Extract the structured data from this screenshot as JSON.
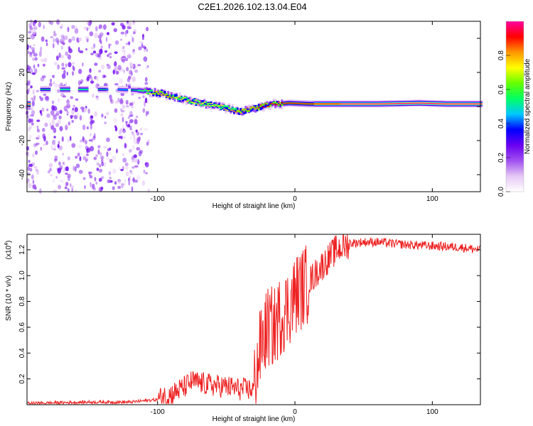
{
  "title": "C2E1.2026.102.13.04.E04",
  "chart_data": [
    {
      "type": "heatmap",
      "title": "C2E1.2026.102.13.04.E04",
      "xlabel": "Height of straight line (km)",
      "ylabel": "Frequency (Hz)",
      "xlim": [
        -195,
        135
      ],
      "ylim": [
        -50,
        50
      ],
      "xticks": [
        -100,
        0,
        100
      ],
      "yticks": [
        -40,
        -20,
        0,
        20,
        40
      ],
      "colorbar": {
        "label": "Normalized spectral amplitude",
        "range": [
          0,
          1
        ],
        "ticks": [
          0.0,
          0.2,
          0.4,
          0.6,
          0.8
        ],
        "colors": [
          "#ffffff",
          "#e6c8f5",
          "#a050f0",
          "#6a00f0",
          "#0000ff",
          "#00c8ff",
          "#00ff64",
          "#64ff00",
          "#ffff00",
          "#ff9600",
          "#ff0000",
          "#ff00a0"
        ]
      },
      "ridge": [
        {
          "x": -190,
          "freq": 10,
          "amp": 0.5
        },
        {
          "x": -175,
          "freq": 10,
          "amp": 0.55
        },
        {
          "x": -160,
          "freq": 10,
          "amp": 0.6
        },
        {
          "x": -145,
          "freq": 10,
          "amp": 0.55
        },
        {
          "x": -130,
          "freq": 10,
          "amp": 0.45
        },
        {
          "x": -115,
          "freq": 9.5,
          "amp": 0.55
        },
        {
          "x": -100,
          "freq": 8,
          "amp": 0.85
        },
        {
          "x": -85,
          "freq": 5,
          "amp": 0.75
        },
        {
          "x": -70,
          "freq": 2,
          "amp": 0.7
        },
        {
          "x": -55,
          "freq": 0,
          "amp": 0.75
        },
        {
          "x": -40,
          "freq": -3,
          "amp": 0.8
        },
        {
          "x": -30,
          "freq": -1,
          "amp": 0.85
        },
        {
          "x": -20,
          "freq": 1,
          "amp": 0.9
        },
        {
          "x": -5,
          "freq": 2,
          "amp": 0.9
        },
        {
          "x": 10,
          "freq": 1.5,
          "amp": 0.9
        },
        {
          "x": 30,
          "freq": 1.5,
          "amp": 0.95
        },
        {
          "x": 60,
          "freq": 1.5,
          "amp": 1.0
        },
        {
          "x": 90,
          "freq": 2,
          "amp": 1.0
        },
        {
          "x": 110,
          "freq": 1.5,
          "amp": 1.0
        },
        {
          "x": 135,
          "freq": 1.5,
          "amp": 1.0
        }
      ]
    },
    {
      "type": "line",
      "xlabel": "Height of straight line (km)",
      "ylabel": "SNR (10 * v/v)",
      "yscale_label": "(x10",
      "yscale_exp": "4",
      "yscale_close": ")",
      "xlim": [
        -195,
        135
      ],
      "ylim": [
        0,
        1.32
      ],
      "xticks": [
        -100,
        0,
        100
      ],
      "yticks": [
        0.2,
        0.4,
        0.6,
        0.8,
        1.0,
        1.2
      ],
      "series": [
        {
          "name": "SNR",
          "color": "#ee2222",
          "x": [
            -195,
            -150,
            -120,
            -100,
            -90,
            -80,
            -75,
            -70,
            -60,
            -50,
            -40,
            -35,
            -30,
            -25,
            -20,
            -15,
            -10,
            -5,
            0,
            10,
            20,
            30,
            40,
            50,
            60,
            80,
            100,
            120,
            135
          ],
          "y": [
            0.01,
            0.02,
            0.02,
            0.04,
            0.08,
            0.14,
            0.18,
            0.17,
            0.15,
            0.14,
            0.12,
            0.12,
            0.12,
            0.45,
            0.6,
            0.6,
            0.7,
            0.75,
            0.85,
            0.95,
            1.08,
            1.2,
            1.25,
            1.26,
            1.26,
            1.24,
            1.23,
            1.22,
            1.2
          ]
        }
      ]
    }
  ]
}
